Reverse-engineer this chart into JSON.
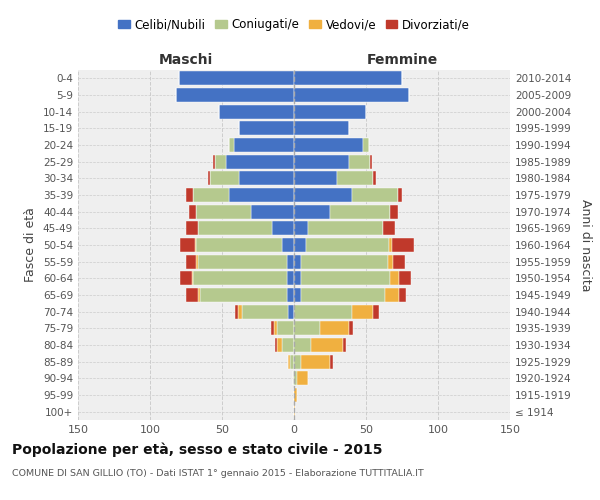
{
  "age_groups": [
    "100+",
    "95-99",
    "90-94",
    "85-89",
    "80-84",
    "75-79",
    "70-74",
    "65-69",
    "60-64",
    "55-59",
    "50-54",
    "45-49",
    "40-44",
    "35-39",
    "30-34",
    "25-29",
    "20-24",
    "15-19",
    "10-14",
    "5-9",
    "0-4"
  ],
  "birth_years": [
    "≤ 1914",
    "1915-1919",
    "1920-1924",
    "1925-1929",
    "1930-1934",
    "1935-1939",
    "1940-1944",
    "1945-1949",
    "1950-1954",
    "1955-1959",
    "1960-1964",
    "1965-1969",
    "1970-1974",
    "1975-1979",
    "1980-1984",
    "1985-1989",
    "1990-1994",
    "1995-1999",
    "2000-2004",
    "2005-2009",
    "2010-2014"
  ],
  "maschi": {
    "celibi": [
      0,
      0,
      0,
      0,
      0,
      0,
      4,
      5,
      5,
      5,
      8,
      15,
      30,
      45,
      38,
      47,
      42,
      38,
      52,
      82,
      80
    ],
    "coniugati": [
      0,
      0,
      1,
      3,
      8,
      12,
      32,
      60,
      65,
      62,
      60,
      52,
      38,
      25,
      20,
      8,
      3,
      0,
      0,
      0,
      0
    ],
    "vedovi": [
      0,
      0,
      0,
      1,
      4,
      2,
      3,
      2,
      1,
      1,
      1,
      0,
      0,
      0,
      0,
      0,
      0,
      0,
      0,
      0,
      0
    ],
    "divorziati": [
      0,
      0,
      0,
      0,
      1,
      2,
      2,
      8,
      8,
      7,
      10,
      8,
      5,
      5,
      2,
      1,
      0,
      0,
      0,
      0,
      0
    ]
  },
  "femmine": {
    "nubili": [
      0,
      0,
      0,
      0,
      0,
      0,
      0,
      5,
      5,
      5,
      8,
      10,
      25,
      40,
      30,
      38,
      48,
      38,
      50,
      80,
      75
    ],
    "coniugate": [
      0,
      0,
      2,
      5,
      12,
      18,
      40,
      58,
      62,
      60,
      58,
      52,
      42,
      32,
      25,
      15,
      4,
      0,
      0,
      0,
      0
    ],
    "vedove": [
      1,
      2,
      8,
      20,
      22,
      20,
      15,
      10,
      6,
      4,
      2,
      0,
      0,
      0,
      0,
      0,
      0,
      0,
      0,
      0,
      0
    ],
    "divorziate": [
      0,
      0,
      0,
      2,
      2,
      3,
      4,
      5,
      8,
      8,
      15,
      8,
      5,
      3,
      2,
      1,
      0,
      0,
      0,
      0,
      0
    ]
  },
  "colors": {
    "celibi": "#4472c4",
    "coniugati": "#b5c98e",
    "vedovi": "#f0b040",
    "divorziati": "#c0392b"
  },
  "xlim": 150,
  "xticks": [
    -150,
    -100,
    -50,
    0,
    50,
    100,
    150
  ],
  "title": "Popolazione per età, sesso e stato civile - 2015",
  "subtitle": "COMUNE DI SAN GILLIO (TO) - Dati ISTAT 1° gennaio 2015 - Elaborazione TUTTITALIA.IT",
  "bg_color": "#ffffff",
  "plot_bg": "#efefef",
  "maschi_label": "Maschi",
  "femmine_label": "Femmine",
  "ylabel_left": "Fasce di età",
  "ylabel_right": "Anni di nascita",
  "legend": [
    "Celibi/Nubili",
    "Coniugati/e",
    "Vedovi/e",
    "Divorziati/e"
  ]
}
